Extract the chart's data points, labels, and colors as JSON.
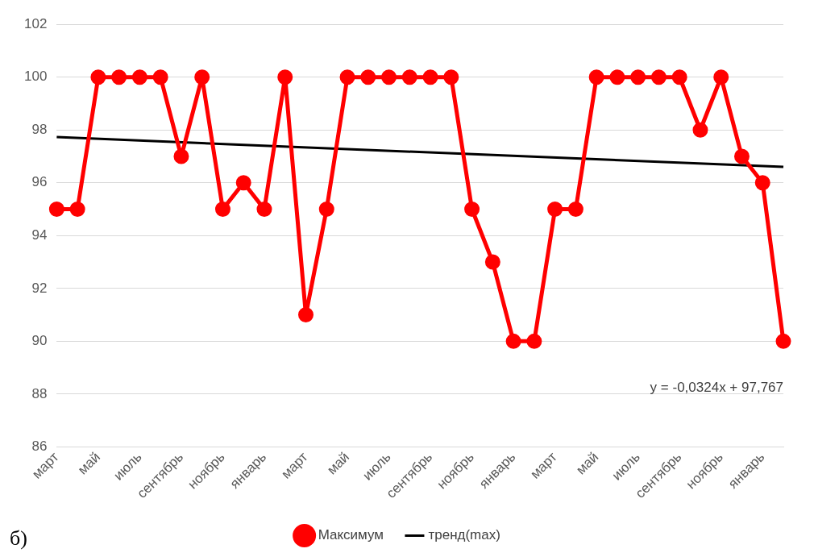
{
  "chart_data": {
    "type": "line",
    "categories": [
      "март",
      null,
      "май",
      null,
      "июль",
      null,
      "сентябрь",
      null,
      "ноябрь",
      null,
      "январь",
      null,
      "март",
      null,
      "май",
      null,
      "июль",
      null,
      "сентябрь",
      null,
      "ноябрь",
      null,
      "январь",
      null,
      "март",
      null,
      "май",
      null,
      "июль",
      null,
      "сентябрь",
      null,
      "ноябрь",
      null,
      "январь",
      null
    ],
    "series": [
      {
        "name": "Максимум",
        "color": "#ff0000",
        "marker": "circle",
        "values": [
          95,
          95,
          100,
          100,
          100,
          100,
          97,
          100,
          95,
          96,
          95,
          100,
          91,
          95,
          100,
          100,
          100,
          100,
          100,
          100,
          95,
          93,
          90,
          90,
          95,
          95,
          100,
          100,
          100,
          100,
          100,
          98,
          100,
          97,
          96,
          90
        ]
      },
      {
        "name": "тренд(max)",
        "color": "#000000",
        "marker": "none",
        "values": [
          97.73,
          null,
          null,
          null,
          null,
          null,
          null,
          null,
          null,
          null,
          null,
          null,
          null,
          null,
          null,
          null,
          null,
          null,
          null,
          null,
          null,
          null,
          null,
          null,
          null,
          null,
          null,
          null,
          null,
          null,
          null,
          null,
          null,
          null,
          null,
          96.6
        ]
      }
    ],
    "ylim": [
      86,
      102
    ],
    "yticks": [
      86,
      88,
      90,
      92,
      94,
      96,
      98,
      100,
      102
    ],
    "grid": "y",
    "legend": "bottom",
    "annotations": [
      "y = -0,0324x + 97,767",
      "б)"
    ]
  }
}
